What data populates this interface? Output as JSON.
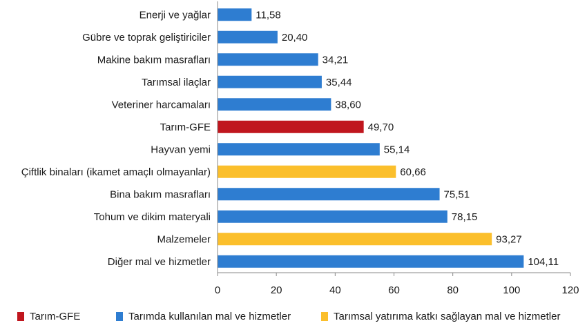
{
  "chart_data": {
    "type": "bar",
    "orientation": "horizontal",
    "categories": [
      "Enerji ve yağlar",
      "Gübre ve toprak geliştiriciler",
      "Makine bakım masrafları",
      "Tarımsal ilaçlar",
      "Veteriner harcamaları",
      "Tarım-GFE",
      "Hayvan yemi",
      "Çiftlik binaları (ikamet amaçlı olmayanlar)",
      "Bina bakım masrafları",
      "Tohum ve dikim materyali",
      "Malzemeler",
      "Diğer mal ve hizmetler"
    ],
    "values": [
      11.58,
      20.4,
      34.21,
      35.44,
      38.6,
      49.7,
      55.14,
      60.66,
      75.51,
      78.15,
      93.27,
      104.11
    ],
    "value_labels": [
      "11,58",
      "20,40",
      "34,21",
      "35,44",
      "38,60",
      "49,70",
      "55,14",
      "60,66",
      "75,51",
      "78,15",
      "93,27",
      "104,11"
    ],
    "groups": [
      1,
      1,
      1,
      1,
      1,
      0,
      1,
      2,
      1,
      1,
      2,
      1
    ],
    "xlim": [
      0,
      120
    ],
    "xticks": [
      0,
      20,
      40,
      60,
      80,
      100,
      120
    ],
    "grid": false,
    "legend_position": "bottom",
    "legend": [
      {
        "label": "Tarım-GFE",
        "color": "#c0161e"
      },
      {
        "label": "Tarımda kullanılan mal ve hizmetler",
        "color": "#2e7dd1"
      },
      {
        "label": "Tarımsal yatırıma katkı sağlayan mal ve hizmetler",
        "color": "#fbbf2c"
      }
    ]
  }
}
